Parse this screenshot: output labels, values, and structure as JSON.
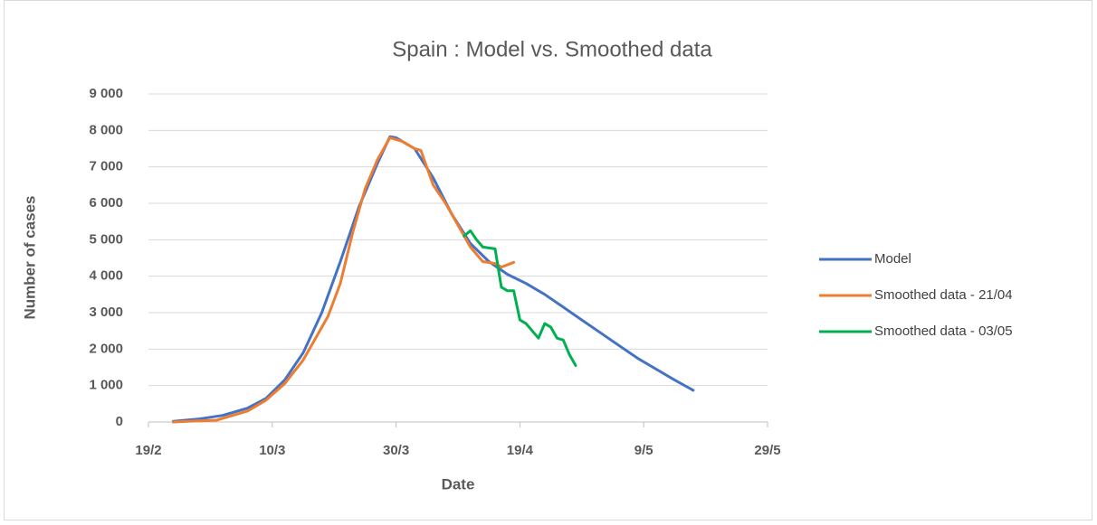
{
  "chart_data": {
    "type": "line",
    "title": "Spain : Model vs. Smoothed data",
    "x_label": "Date",
    "y_label": "Number of cases",
    "xlim": [
      "19/2",
      "29/5"
    ],
    "xticks": [
      "19/2",
      "10/3",
      "30/3",
      "19/4",
      "9/5",
      "29/5"
    ],
    "ylim": [
      0,
      9000
    ],
    "yticks": [
      0,
      {
        "value": 1000,
        "label": "1 000"
      },
      {
        "value": 2000,
        "label": "2 000"
      },
      {
        "value": 3000,
        "label": "3 000"
      },
      {
        "value": 4000,
        "label": "4 000"
      },
      {
        "value": 5000,
        "label": "5 000"
      },
      {
        "value": 6000,
        "label": "6 000"
      },
      {
        "value": 7000,
        "label": "7 000"
      },
      {
        "value": 8000,
        "label": "8 000"
      },
      {
        "value": 9000,
        "label": "9 000"
      }
    ],
    "grid": true,
    "legend": "right",
    "series": [
      {
        "name": "Model",
        "color": "#4472c4",
        "x": [
          "23/2",
          "27/2",
          "2/3",
          "6/3",
          "9/3",
          "12/3",
          "15/3",
          "18/3",
          "21/3",
          "24/3",
          "27/3",
          "29/3",
          "30/3",
          "2/4",
          "5/4",
          "8/4",
          "11/4",
          "14/4",
          "17/4",
          "20/4",
          "23/4",
          "26/4",
          "29/4",
          "2/5",
          "5/5",
          "8/5",
          "11/5",
          "14/5",
          "17/5"
        ],
        "values": [
          20,
          80,
          180,
          380,
          650,
          1150,
          1900,
          3000,
          4400,
          5900,
          7100,
          7830,
          7800,
          7500,
          6700,
          5700,
          4900,
          4400,
          4050,
          3800,
          3500,
          3150,
          2800,
          2450,
          2100,
          1750,
          1450,
          1150,
          870
        ]
      },
      {
        "name": "Smoothed data - 21/04",
        "color": "#ed7d31",
        "x": [
          "23/2",
          "27/2",
          "1/3",
          "6/3",
          "9/3",
          "12/3",
          "15/3",
          "17/3",
          "19/3",
          "21/3",
          "23/3",
          "25/3",
          "27/3",
          "29/3",
          "31/3",
          "2/4",
          "3/4",
          "5/4",
          "7/4",
          "9/4",
          "11/4",
          "13/4",
          "15/4",
          "16/4",
          "18/4"
        ],
        "values": [
          0,
          30,
          50,
          300,
          600,
          1050,
          1700,
          2300,
          2900,
          3800,
          5200,
          6400,
          7200,
          7800,
          7700,
          7500,
          7450,
          6500,
          6000,
          5400,
          4800,
          4400,
          4350,
          4250,
          4380
        ]
      },
      {
        "name": "Smoothed data - 03/05",
        "color": "#00b050",
        "x": [
          "10/4",
          "11/4",
          "12/4",
          "13/4",
          "15/4",
          "16/4",
          "17/4",
          "18/4",
          "19/4",
          "20/4",
          "21/4",
          "22/4",
          "23/4",
          "24/4",
          "25/4",
          "26/4",
          "27/4",
          "28/4"
        ],
        "values": [
          5100,
          5250,
          5000,
          4800,
          4750,
          3700,
          3600,
          3600,
          2800,
          2700,
          2500,
          2300,
          2700,
          2600,
          2300,
          2250,
          1850,
          1550
        ]
      }
    ]
  }
}
